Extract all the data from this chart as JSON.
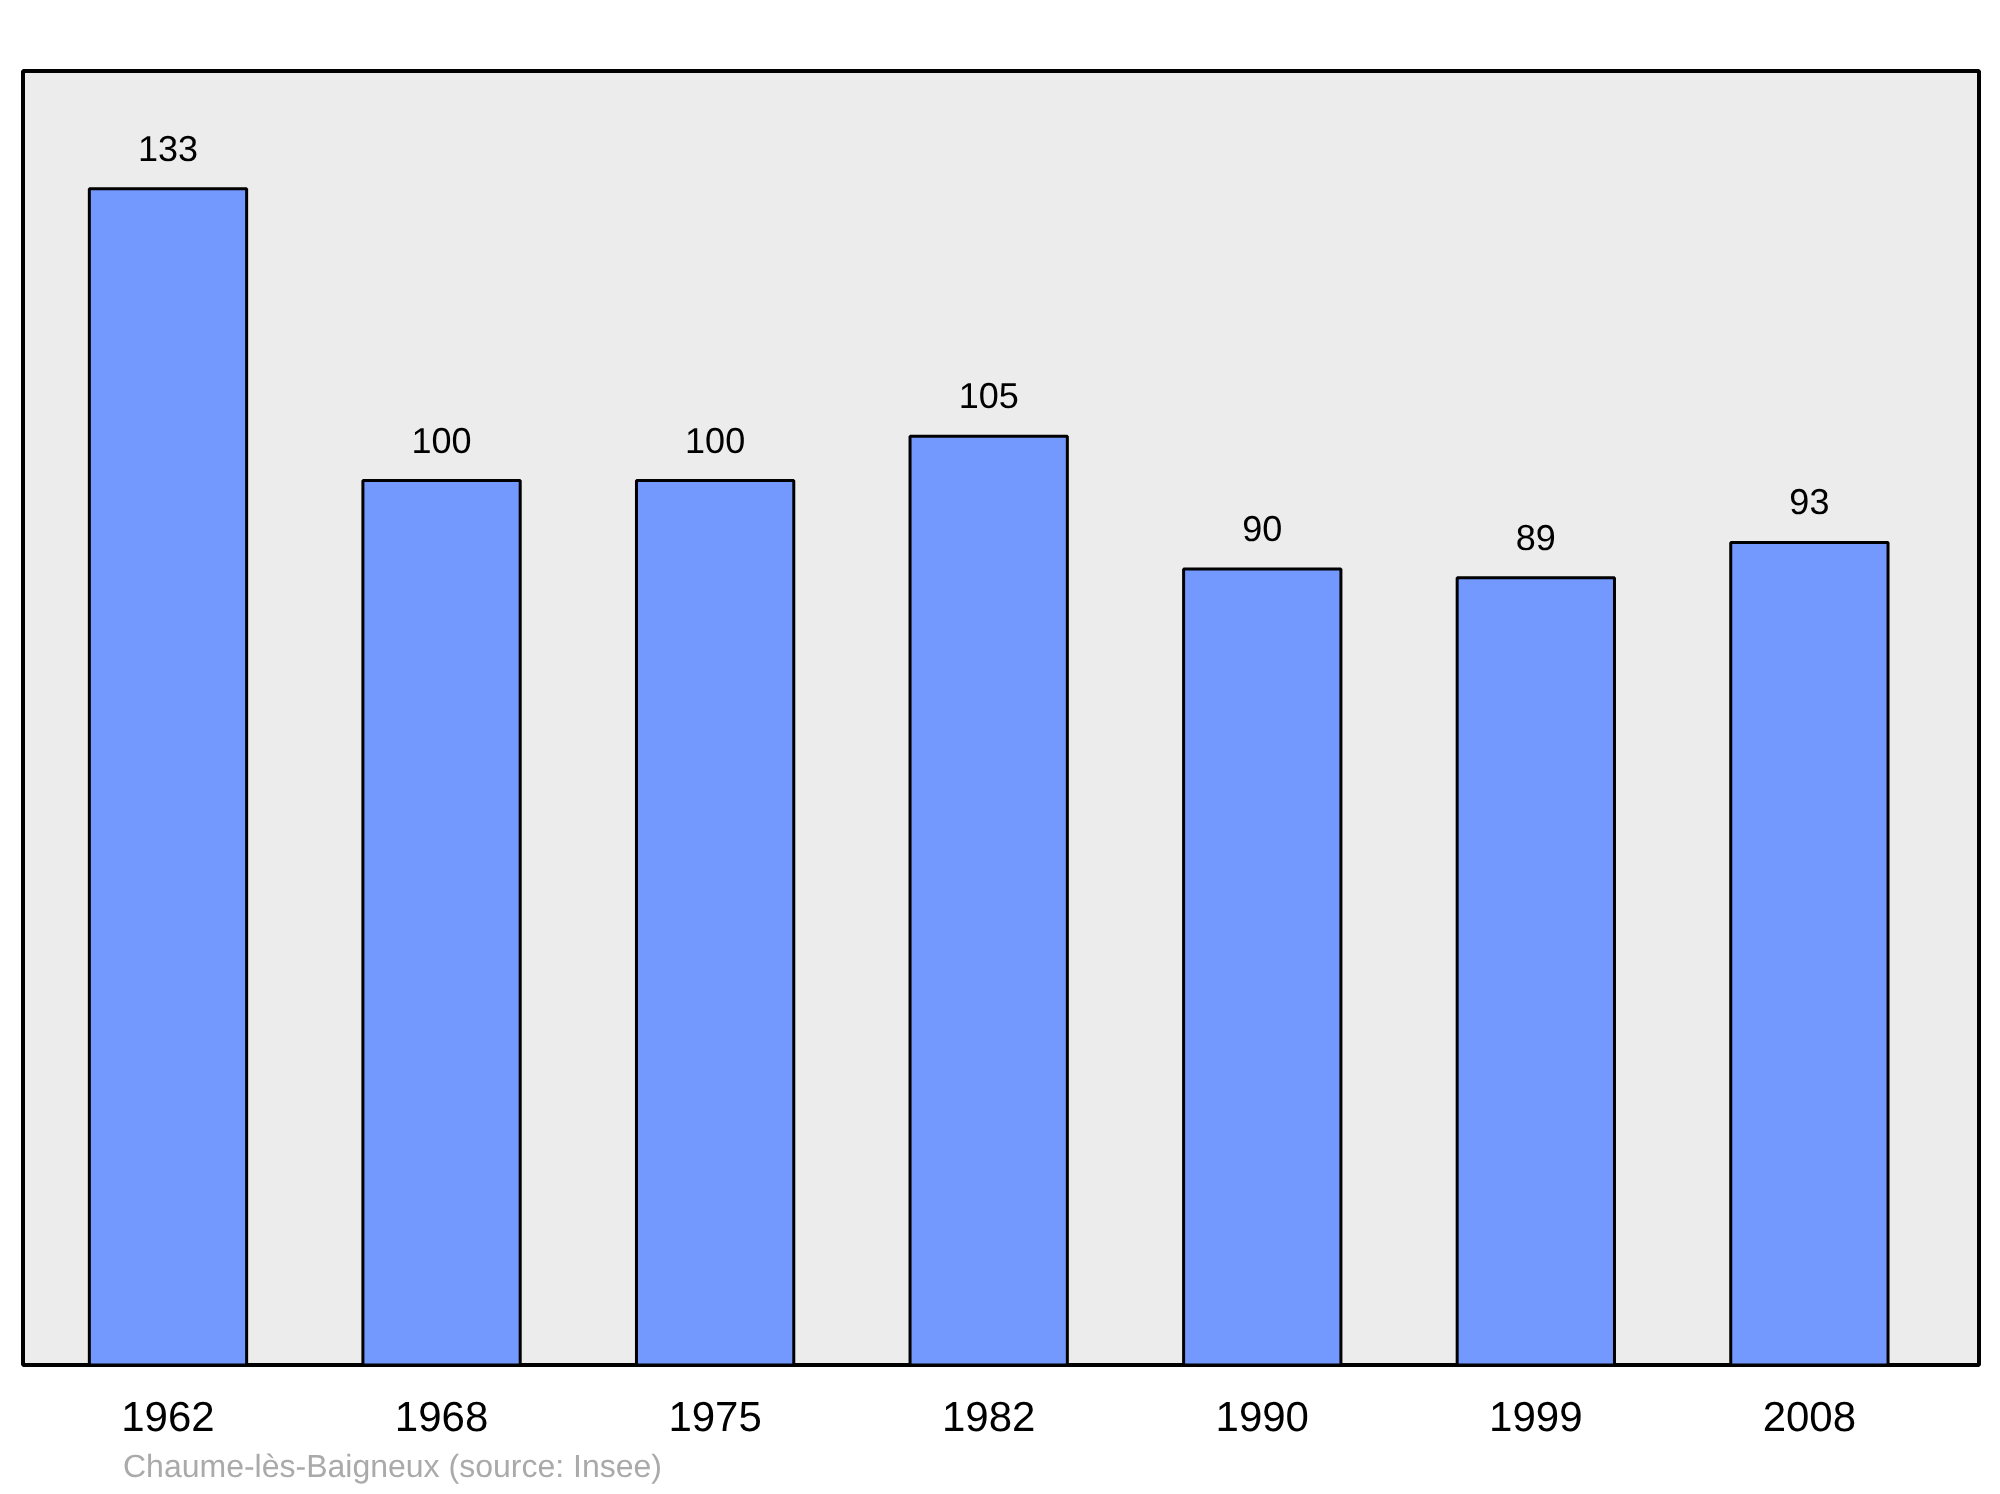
{
  "chart_data": {
    "type": "bar",
    "tick_labels": "x",
    "categories": [
      "1962",
      "1968",
      "1975",
      "1982",
      "1990",
      "1999",
      "2008"
    ],
    "values": [
      133,
      100,
      100,
      105,
      90,
      89,
      93
    ],
    "color": "#7399ff",
    "data_labels": true,
    "grid": false,
    "annotations": [
      "Chaume-lès-Baigneux    (source: Insee)"
    ]
  }
}
